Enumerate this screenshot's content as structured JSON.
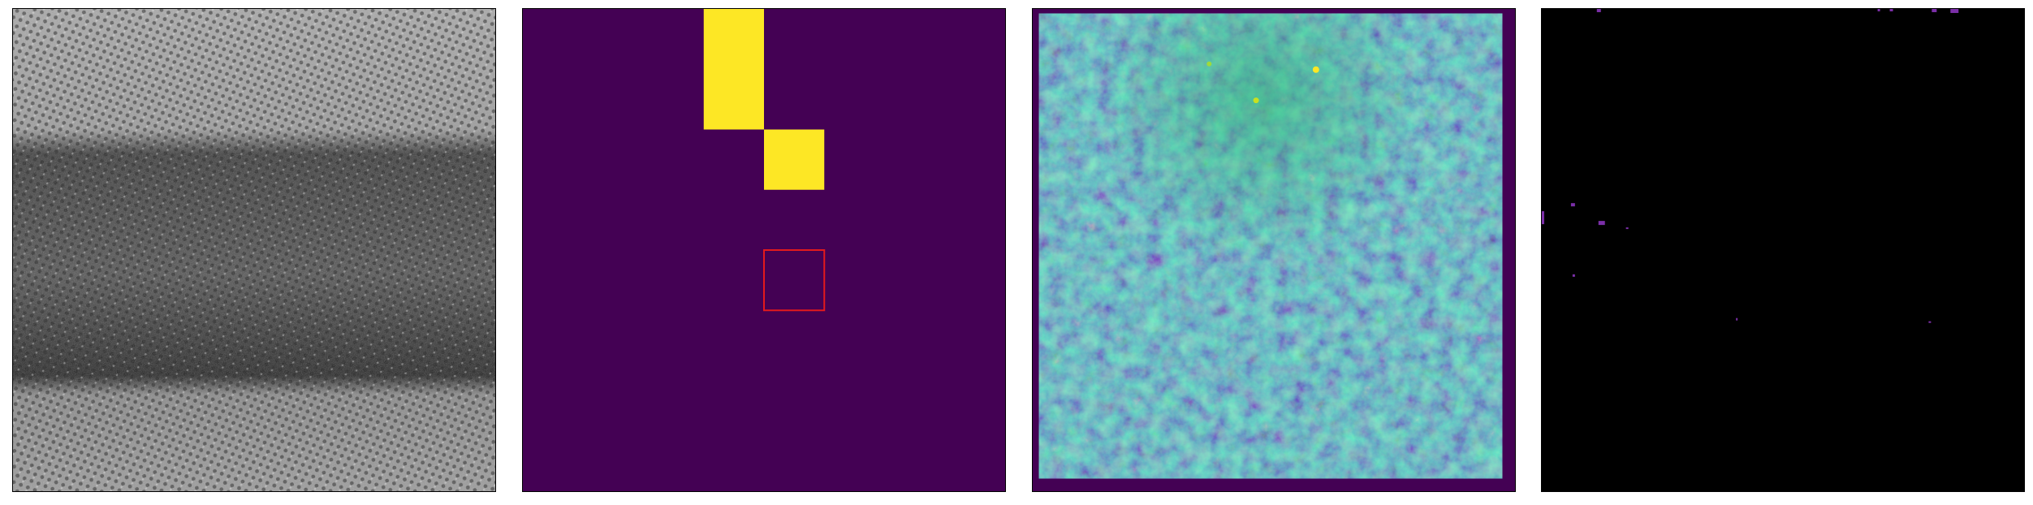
{
  "panels": [
    {
      "name": "hrtem-grayscale-image"
    },
    {
      "name": "patch-mask",
      "colors": {
        "background": "#440154",
        "selected": "#fde725",
        "outline": "#e31a1c"
      }
    },
    {
      "name": "viridis-heatmap",
      "colors": {
        "low": "#440154",
        "mid": "#31688e",
        "high": "#35b779",
        "peak": "#fde725"
      }
    },
    {
      "name": "sparse-activation-map",
      "colors": {
        "background": "#000000",
        "spots": "#7b2fa8"
      }
    }
  ],
  "patch_mask": {
    "grid": 8,
    "yellow_cells": [
      [
        3,
        0
      ],
      [
        3,
        1
      ],
      [
        4,
        2
      ]
    ],
    "outline_cell": [
      4,
      4
    ]
  }
}
